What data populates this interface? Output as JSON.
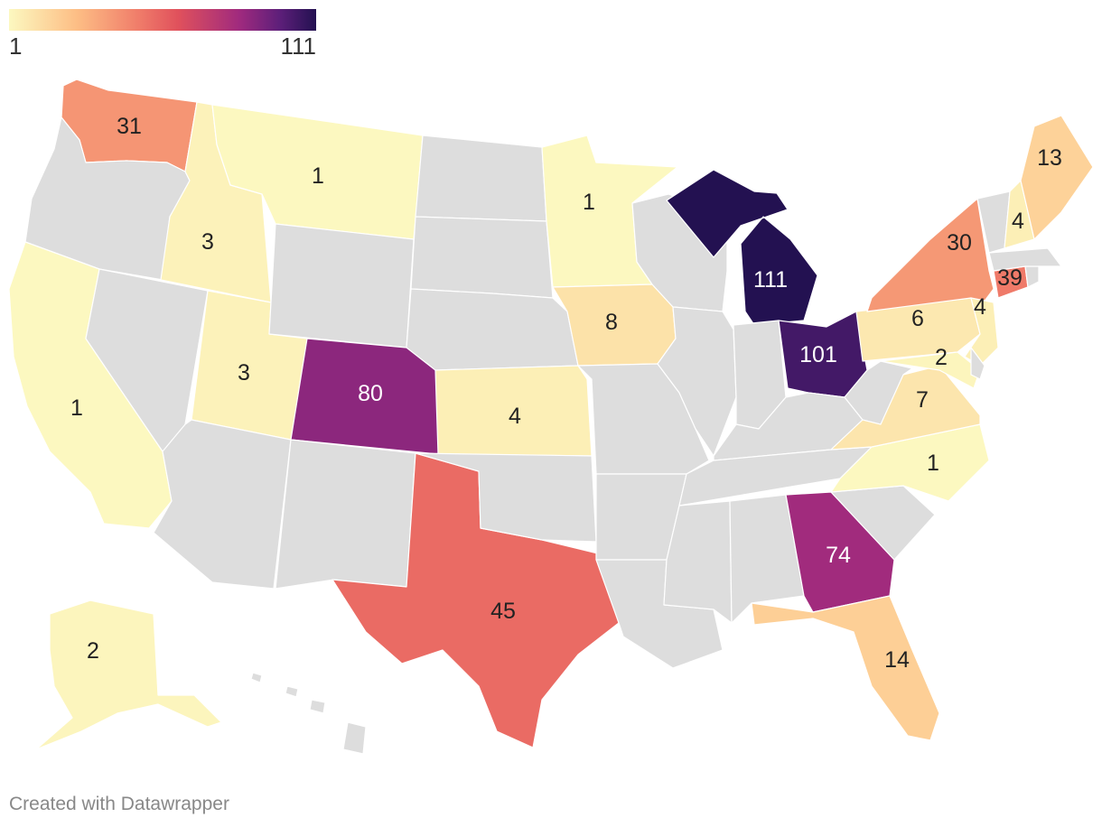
{
  "legend": {
    "min_label": "1",
    "max_label": "111",
    "min": 1,
    "max": 111
  },
  "colors": {
    "no_data": "#dddddd",
    "scale": [
      "#fcf8c0",
      "#fdbe85",
      "#f07d6a",
      "#e0515c",
      "#a02a7e",
      "#5e1f7a",
      "#231151"
    ]
  },
  "states": [
    {
      "id": "WA",
      "value": 31,
      "label": "31"
    },
    {
      "id": "OR",
      "value": null,
      "label": ""
    },
    {
      "id": "CA",
      "value": 1,
      "label": "1"
    },
    {
      "id": "ID",
      "value": 3,
      "label": "3"
    },
    {
      "id": "MT",
      "value": 1,
      "label": "1"
    },
    {
      "id": "NV",
      "value": null,
      "label": ""
    },
    {
      "id": "UT",
      "value": 3,
      "label": "3"
    },
    {
      "id": "WY",
      "value": null,
      "label": ""
    },
    {
      "id": "CO",
      "value": 80,
      "label": "80"
    },
    {
      "id": "AZ",
      "value": null,
      "label": ""
    },
    {
      "id": "NM",
      "value": null,
      "label": ""
    },
    {
      "id": "TX",
      "value": 45,
      "label": "45"
    },
    {
      "id": "ND",
      "value": null,
      "label": ""
    },
    {
      "id": "SD",
      "value": null,
      "label": ""
    },
    {
      "id": "NE",
      "value": null,
      "label": ""
    },
    {
      "id": "KS",
      "value": 4,
      "label": "4"
    },
    {
      "id": "OK",
      "value": null,
      "label": ""
    },
    {
      "id": "MN",
      "value": 1,
      "label": "1"
    },
    {
      "id": "IA",
      "value": 8,
      "label": "8"
    },
    {
      "id": "MO",
      "value": null,
      "label": ""
    },
    {
      "id": "AR",
      "value": null,
      "label": ""
    },
    {
      "id": "LA",
      "value": null,
      "label": ""
    },
    {
      "id": "WI",
      "value": null,
      "label": ""
    },
    {
      "id": "IL",
      "value": null,
      "label": ""
    },
    {
      "id": "MI",
      "value": 111,
      "label": "111"
    },
    {
      "id": "IN",
      "value": null,
      "label": ""
    },
    {
      "id": "OH",
      "value": 101,
      "label": "101"
    },
    {
      "id": "KY",
      "value": null,
      "label": ""
    },
    {
      "id": "TN",
      "value": null,
      "label": ""
    },
    {
      "id": "MS",
      "value": null,
      "label": ""
    },
    {
      "id": "AL",
      "value": null,
      "label": ""
    },
    {
      "id": "GA",
      "value": 74,
      "label": "74"
    },
    {
      "id": "FL",
      "value": 14,
      "label": "14"
    },
    {
      "id": "SC",
      "value": null,
      "label": ""
    },
    {
      "id": "NC",
      "value": 1,
      "label": "1"
    },
    {
      "id": "VA",
      "value": 7,
      "label": "7"
    },
    {
      "id": "WV",
      "value": null,
      "label": ""
    },
    {
      "id": "PA",
      "value": 6,
      "label": "6"
    },
    {
      "id": "NY",
      "value": 30,
      "label": "30"
    },
    {
      "id": "NJ",
      "value": 4,
      "label": "4"
    },
    {
      "id": "MD",
      "value": 2,
      "label": "2"
    },
    {
      "id": "DE",
      "value": null,
      "label": ""
    },
    {
      "id": "CT",
      "value": 39,
      "label": "39"
    },
    {
      "id": "RI",
      "value": null,
      "label": ""
    },
    {
      "id": "MA",
      "value": null,
      "label": ""
    },
    {
      "id": "VT",
      "value": null,
      "label": ""
    },
    {
      "id": "NH",
      "value": 4,
      "label": "4"
    },
    {
      "id": "ME",
      "value": 13,
      "label": "13"
    },
    {
      "id": "AK",
      "value": 2,
      "label": "2"
    },
    {
      "id": "HI",
      "value": null,
      "label": ""
    }
  ],
  "footer": {
    "credit": "Created with Datawrapper"
  }
}
